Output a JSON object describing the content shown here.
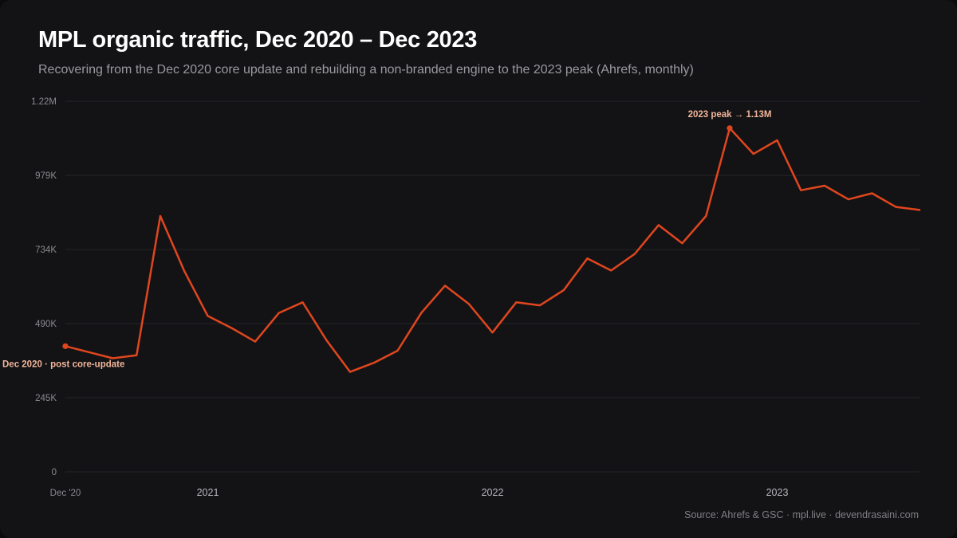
{
  "header": {
    "title": "MPL organic traffic, Dec 2020 – Dec 2023",
    "subtitle": "Recovering from the Dec 2020 core update and rebuilding a non-branded engine to the 2023 peak (Ahrefs, monthly)"
  },
  "footer": {
    "source": "Source: Ahrefs & GSC · mpl.live · devendrasaini.com"
  },
  "colors": {
    "line": "#e0461e",
    "grid": "#26262a",
    "annotation": "#f2b59a",
    "background": "#131315"
  },
  "chart_data": {
    "type": "line",
    "title": "MPL organic traffic, Dec 2020 – Dec 2023",
    "subtitle": "Recovering from the Dec 2020 core update and rebuilding a non-branded engine to the 2023 peak (Ahrefs, monthly)",
    "xlabel": "",
    "ylabel": "",
    "ylim": [
      0,
      1224000
    ],
    "y_ticks": [
      {
        "value": 0,
        "label": "0"
      },
      {
        "value": 245000,
        "label": "245K"
      },
      {
        "value": 490000,
        "label": "490K"
      },
      {
        "value": 734000,
        "label": "734K"
      },
      {
        "value": 979000,
        "label": "979K"
      },
      {
        "value": 1224000,
        "label": "1.22M"
      }
    ],
    "x_ticks": [
      {
        "x": "2020-12",
        "label": "Dec '20",
        "style": "small"
      },
      {
        "x": "2021-06",
        "label": "2021",
        "style": "main"
      },
      {
        "x": "2022-06",
        "label": "2022",
        "style": "main"
      },
      {
        "x": "2023-06",
        "label": "2023",
        "style": "main"
      }
    ],
    "grid": true,
    "series": [
      {
        "x": [
          "2020-12",
          "2021-01",
          "2021-02",
          "2021-03",
          "2021-04",
          "2021-05",
          "2021-06",
          "2021-07",
          "2021-08",
          "2021-09",
          "2021-10",
          "2021-11",
          "2021-12",
          "2022-01",
          "2022-02",
          "2022-03",
          "2022-04",
          "2022-05",
          "2022-06",
          "2022-07",
          "2022-08",
          "2022-09",
          "2022-10",
          "2022-11",
          "2022-12",
          "2023-01",
          "2023-02",
          "2023-03",
          "2023-04",
          "2023-05",
          "2023-06",
          "2023-07",
          "2023-08",
          "2023-09",
          "2023-10",
          "2023-11",
          "2023-12"
        ],
        "values": [
          415000,
          395000,
          375000,
          385000,
          845000,
          665000,
          515000,
          475000,
          430000,
          525000,
          560000,
          435000,
          330000,
          360000,
          400000,
          525000,
          615000,
          555000,
          460000,
          560000,
          550000,
          600000,
          705000,
          665000,
          720000,
          815000,
          755000,
          845000,
          1135000,
          1050000,
          1095000,
          930000,
          945000,
          900000,
          920000,
          875000,
          865000
        ]
      }
    ],
    "annotations": [
      {
        "x": "2020-12",
        "value": 415000,
        "label": "Dec 2020 · post core-update",
        "position": "below"
      },
      {
        "x": "2023-04",
        "value": 1135000,
        "label": "2023 peak → 1.13M",
        "position": "above"
      }
    ]
  }
}
